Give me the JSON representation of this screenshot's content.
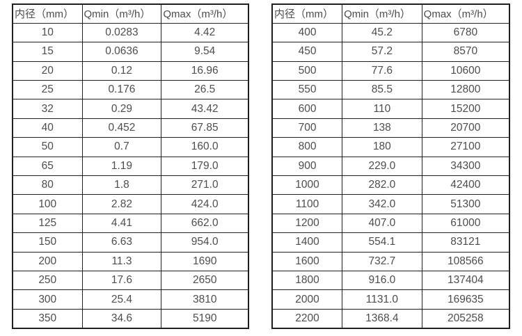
{
  "colors": {
    "background": "#ffffff",
    "border": "#1f1f1f",
    "text": "#4d4d4d"
  },
  "tables": [
    {
      "name": "flow-range-table-dn10-dn350",
      "columns": [
        "内径（mm）",
        "Qmin（m³/h）",
        "Qmax（m³/h）"
      ],
      "rows": [
        [
          "10",
          "0.0283",
          "4.42"
        ],
        [
          "15",
          "0.0636",
          "9.54"
        ],
        [
          "20",
          "0.12",
          "16.96"
        ],
        [
          "25",
          "0.176",
          "26.5"
        ],
        [
          "32",
          "0.29",
          "43.42"
        ],
        [
          "40",
          "0.452",
          "67.85"
        ],
        [
          "50",
          "0.7",
          "160.0"
        ],
        [
          "65",
          "1.19",
          "179.0"
        ],
        [
          "80",
          "1.8",
          "271.0"
        ],
        [
          "100",
          "2.82",
          "424.0"
        ],
        [
          "125",
          "4.41",
          "662.0"
        ],
        [
          "150",
          "6.63",
          "954.0"
        ],
        [
          "200",
          "11.3",
          "1690"
        ],
        [
          "250",
          "17.6",
          "2650"
        ],
        [
          "300",
          "25.4",
          "3810"
        ],
        [
          "350",
          "34.6",
          "5190"
        ]
      ]
    },
    {
      "name": "flow-range-table-dn400-dn2200",
      "columns": [
        "内径（mm）",
        "Qmin（m³/h）",
        "Qmax（m³/h）"
      ],
      "rows": [
        [
          "400",
          "45.2",
          "6780"
        ],
        [
          "450",
          "57.2",
          "8570"
        ],
        [
          "500",
          "77.6",
          "10600"
        ],
        [
          "550",
          "85.5",
          "12800"
        ],
        [
          "600",
          "110",
          "15200"
        ],
        [
          "700",
          "138",
          "20700"
        ],
        [
          "800",
          "180",
          "27100"
        ],
        [
          "900",
          "229.0",
          "34300"
        ],
        [
          "1000",
          "282.0",
          "42400"
        ],
        [
          "1100",
          "342.0",
          "51300"
        ],
        [
          "1200",
          "407.0",
          "61000"
        ],
        [
          "1400",
          "554.1",
          "83121"
        ],
        [
          "1600",
          "732.7",
          "108566"
        ],
        [
          "1800",
          "916.0",
          "137404"
        ],
        [
          "2000",
          "1131.0",
          "169635"
        ],
        [
          "2200",
          "1368.4",
          "205258"
        ]
      ]
    }
  ]
}
